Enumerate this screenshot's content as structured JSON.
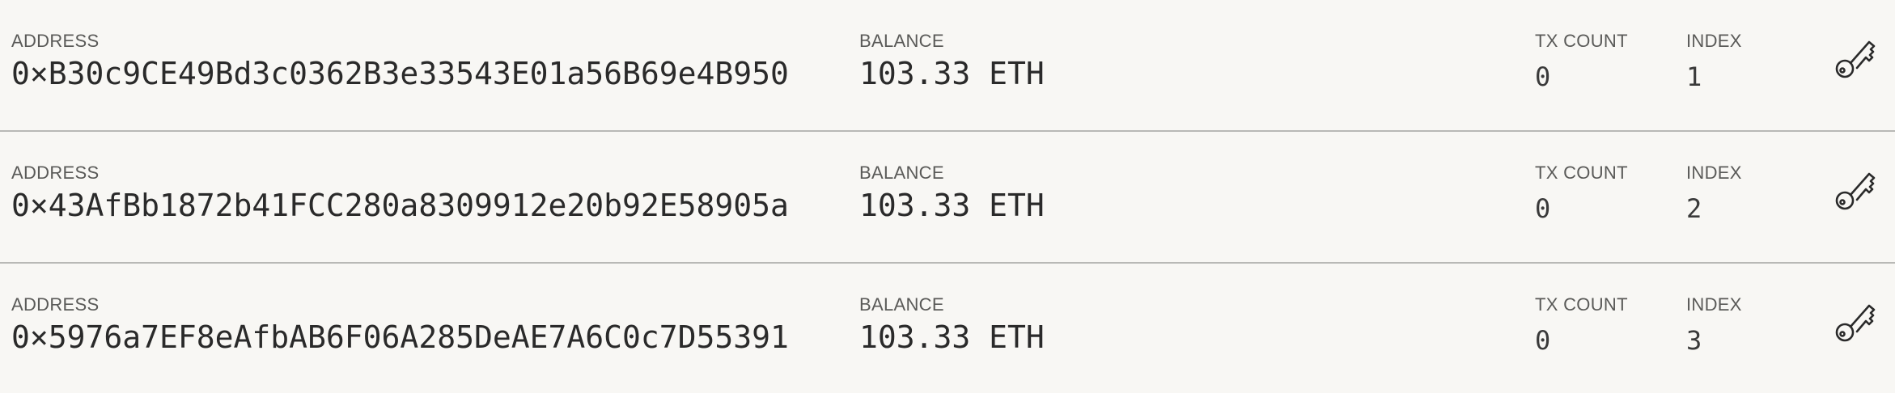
{
  "labels": {
    "address": "ADDRESS",
    "balance": "BALANCE",
    "tx_count": "TX COUNT",
    "index": "INDEX"
  },
  "accounts": [
    {
      "address": "0×B30c9CE49Bd3c0362B3e33543E01a56B69e4B950",
      "balance": "103.33 ETH",
      "tx_count": "0",
      "index": "1",
      "action_icon": "key-icon"
    },
    {
      "address": "0×43AfBb1872b41FCC280a8309912e20b92E58905a",
      "balance": "103.33 ETH",
      "tx_count": "0",
      "index": "2",
      "action_icon": "key-icon"
    },
    {
      "address": "0×5976a7EF8eAfbAB6F06A285DeAE7A6C0c7D55391",
      "balance": "103.33 ETH",
      "tx_count": "0",
      "index": "3",
      "action_icon": "key-icon"
    }
  ]
}
